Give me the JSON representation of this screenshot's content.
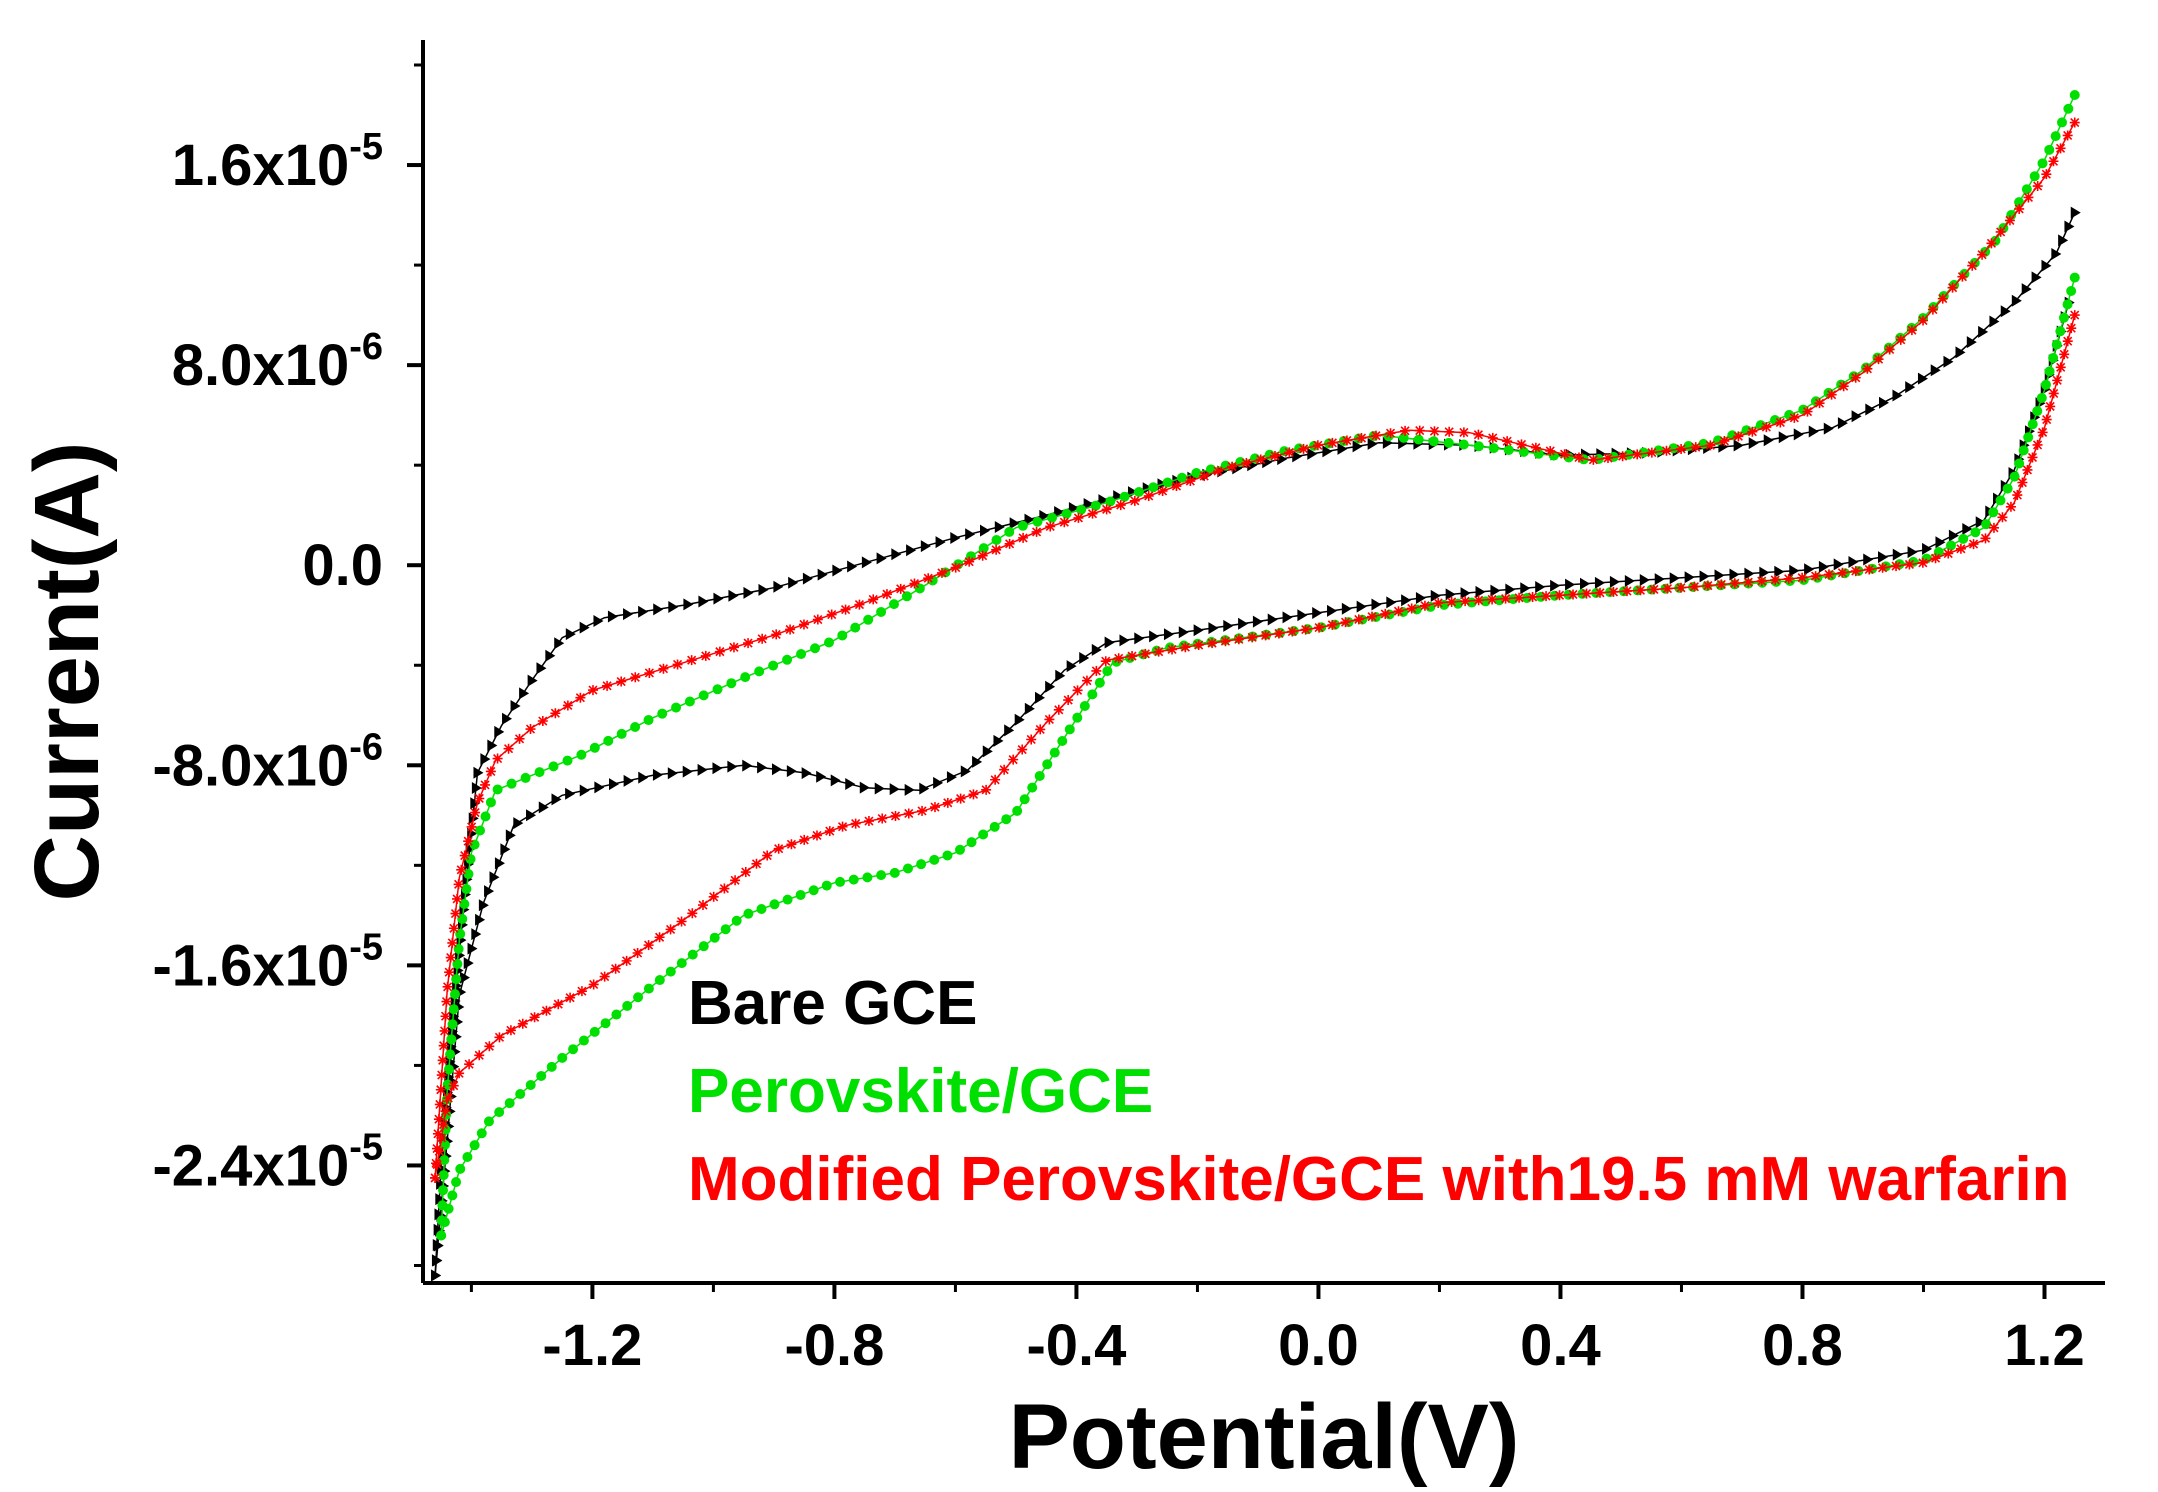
{
  "chart_data": {
    "type": "line",
    "title": "",
    "xlabel": "Potential(V)",
    "ylabel": "Current(A)",
    "xlim": [
      -1.48,
      1.3
    ],
    "ylim": [
      -2.87e-05,
      2.1e-05
    ],
    "grid": false,
    "legend_position": "bottom-center",
    "x_ticks": [
      {
        "value": -1.2,
        "label": "-1.2"
      },
      {
        "value": -0.8,
        "label": "-0.8"
      },
      {
        "value": -0.4,
        "label": "-0.4"
      },
      {
        "value": 0.0,
        "label": "0.0"
      },
      {
        "value": 0.4,
        "label": "0.4"
      },
      {
        "value": 0.8,
        "label": "0.8"
      },
      {
        "value": 1.2,
        "label": "1.2"
      }
    ],
    "y_ticks": [
      {
        "value": 1.6e-05,
        "mantissa": "1.6x10",
        "exponent": "-5"
      },
      {
        "value": 8e-06,
        "mantissa": "8.0x10",
        "exponent": "-6"
      },
      {
        "value": 0.0,
        "mantissa": "0.0",
        "exponent": ""
      },
      {
        "value": -8e-06,
        "mantissa": "-8.0x10",
        "exponent": "-6"
      },
      {
        "value": -1.6e-05,
        "mantissa": "-1.6x10",
        "exponent": "-5"
      },
      {
        "value": -2.4e-05,
        "mantissa": "-2.4x10",
        "exponent": "-5"
      }
    ],
    "series": [
      {
        "name": "Bare GCE",
        "color": "#000000",
        "marker": "triangle-right",
        "forward": [
          [
            -1.46,
            -2.84e-05
          ],
          [
            -1.44,
            -2.3e-05
          ],
          [
            -1.42,
            -1.72e-05
          ],
          [
            -1.38,
            -1.35e-05
          ],
          [
            -1.33,
            -1.04e-05
          ],
          [
            -1.25,
            -9.2e-06
          ],
          [
            -1.1,
            -8.4e-06
          ],
          [
            -0.95,
            -8e-06
          ],
          [
            -0.85,
            -8.3e-06
          ],
          [
            -0.75,
            -8.9e-06
          ],
          [
            -0.66,
            -9e-06
          ],
          [
            -0.58,
            -8.2e-06
          ],
          [
            -0.5,
            -6.3e-06
          ],
          [
            -0.42,
            -4.2e-06
          ],
          [
            -0.35,
            -3.1e-06
          ],
          [
            -0.2,
            -2.6e-06
          ],
          [
            0.0,
            -1.9e-06
          ],
          [
            0.2,
            -1.2e-06
          ],
          [
            0.4,
            -8e-07
          ],
          [
            0.6,
            -5e-07
          ],
          [
            0.8,
            -2e-07
          ],
          [
            1.0,
            6e-07
          ],
          [
            1.1,
            1.8e-06
          ],
          [
            1.15,
            3.8e-06
          ],
          [
            1.2,
            7e-06
          ],
          [
            1.24,
            1.05e-05
          ]
        ],
        "reverse": [
          [
            1.25,
            1.41e-05
          ],
          [
            1.22,
            1.25e-05
          ],
          [
            1.15,
            1.05e-05
          ],
          [
            1.05,
            8.3e-06
          ],
          [
            0.95,
            6.7e-06
          ],
          [
            0.85,
            5.5e-06
          ],
          [
            0.7,
            4.8e-06
          ],
          [
            0.55,
            4.5e-06
          ],
          [
            0.4,
            4.4e-06
          ],
          [
            0.25,
            4.8e-06
          ],
          [
            0.1,
            4.9e-06
          ],
          [
            -0.05,
            4.3e-06
          ],
          [
            -0.25,
            3.3e-06
          ],
          [
            -0.45,
            2e-06
          ],
          [
            -0.6,
            1.1e-06
          ],
          [
            -0.75,
            1e-07
          ],
          [
            -0.9,
            -9e-07
          ],
          [
            -1.05,
            -1.6e-06
          ],
          [
            -1.18,
            -2.1e-06
          ],
          [
            -1.25,
            -2.9e-06
          ],
          [
            -1.3,
            -4.6e-06
          ],
          [
            -1.35,
            -6.4e-06
          ],
          [
            -1.39,
            -8.3e-06
          ],
          [
            -1.41,
            -1.3e-05
          ],
          [
            -1.43,
            -1.8e-05
          ],
          [
            -1.45,
            -2.4e-05
          ],
          [
            -1.46,
            -2.84e-05
          ]
        ]
      },
      {
        "name": "Perovskite/GCE",
        "color": "#00e000",
        "marker": "circle",
        "forward": [
          [
            -1.45,
            -2.68e-05
          ],
          [
            -1.42,
            -2.42e-05
          ],
          [
            -1.37,
            -2.22e-05
          ],
          [
            -1.25,
            -1.97e-05
          ],
          [
            -1.1,
            -1.68e-05
          ],
          [
            -0.95,
            -1.4e-05
          ],
          [
            -0.8,
            -1.27e-05
          ],
          [
            -0.7,
            -1.23e-05
          ],
          [
            -0.6,
            -1.15e-05
          ],
          [
            -0.5,
            -9.9e-06
          ],
          [
            -0.42,
            -6.9e-06
          ],
          [
            -0.34,
            -3.9e-06
          ],
          [
            -0.25,
            -3.3e-06
          ],
          [
            0.0,
            -2.5e-06
          ],
          [
            0.2,
            -1.6e-06
          ],
          [
            0.4,
            -1.2e-06
          ],
          [
            0.6,
            -9e-07
          ],
          [
            0.8,
            -6e-07
          ],
          [
            1.0,
            2e-07
          ],
          [
            1.1,
            1.5e-06
          ],
          [
            1.15,
            3.5e-06
          ],
          [
            1.2,
            7e-06
          ],
          [
            1.25,
            1.15e-05
          ]
        ],
        "reverse": [
          [
            1.25,
            1.88e-05
          ],
          [
            1.2,
            1.62e-05
          ],
          [
            1.12,
            1.3e-05
          ],
          [
            1.0,
            9.9e-06
          ],
          [
            0.9,
            7.8e-06
          ],
          [
            0.8,
            6.2e-06
          ],
          [
            0.65,
            4.9e-06
          ],
          [
            0.45,
            4.2e-06
          ],
          [
            0.25,
            4.8e-06
          ],
          [
            0.1,
            5.2e-06
          ],
          [
            -0.05,
            4.6e-06
          ],
          [
            -0.2,
            3.7e-06
          ],
          [
            -0.35,
            2.5e-06
          ],
          [
            -0.5,
            1.5e-06
          ],
          [
            -0.65,
            -8e-07
          ],
          [
            -0.8,
            -3e-06
          ],
          [
            -0.95,
            -4.5e-06
          ],
          [
            -1.1,
            -6.1e-06
          ],
          [
            -1.22,
            -7.6e-06
          ],
          [
            -1.3,
            -8.4e-06
          ],
          [
            -1.36,
            -9e-06
          ],
          [
            -1.4,
            -1.15e-05
          ],
          [
            -1.42,
            -1.5e-05
          ],
          [
            -1.44,
            -2.1e-05
          ],
          [
            -1.45,
            -2.68e-05
          ]
        ]
      },
      {
        "name": "Modified Perovskite/GCE with19.5 mM warfarin",
        "color": "#ff0000",
        "marker": "star",
        "forward": [
          [
            -1.46,
            -2.45e-05
          ],
          [
            -1.44,
            -2.14e-05
          ],
          [
            -1.42,
            -2.03e-05
          ],
          [
            -1.35,
            -1.88e-05
          ],
          [
            -1.2,
            -1.68e-05
          ],
          [
            -1.05,
            -1.42e-05
          ],
          [
            -0.9,
            -1.14e-05
          ],
          [
            -0.78,
            -1.04e-05
          ],
          [
            -0.65,
            -9.8e-06
          ],
          [
            -0.55,
            -9e-06
          ],
          [
            -0.45,
            -6.3e-06
          ],
          [
            -0.35,
            -3.8e-06
          ],
          [
            -0.2,
            -3.2e-06
          ],
          [
            0.0,
            -2.5e-06
          ],
          [
            0.2,
            -1.5e-06
          ],
          [
            0.4,
            -1.2e-06
          ],
          [
            0.6,
            -9e-07
          ],
          [
            0.8,
            -5e-07
          ],
          [
            1.0,
            1e-07
          ],
          [
            1.1,
            1e-06
          ],
          [
            1.15,
            2.5e-06
          ],
          [
            1.2,
            5.5e-06
          ],
          [
            1.25,
            1e-05
          ]
        ],
        "reverse": [
          [
            1.25,
            1.77e-05
          ],
          [
            1.2,
            1.55e-05
          ],
          [
            1.1,
            1.25e-05
          ],
          [
            1.0,
            9.8e-06
          ],
          [
            0.9,
            7.7e-06
          ],
          [
            0.8,
            6e-06
          ],
          [
            0.65,
            4.8e-06
          ],
          [
            0.45,
            4.2e-06
          ],
          [
            0.25,
            5.3e-06
          ],
          [
            0.15,
            5.4e-06
          ],
          [
            0.0,
            4.8e-06
          ],
          [
            -0.15,
            3.9e-06
          ],
          [
            -0.3,
            2.6e-06
          ],
          [
            -0.45,
            1.5e-06
          ],
          [
            -0.6,
            -1e-07
          ],
          [
            -0.75,
            -1.5e-06
          ],
          [
            -0.9,
            -2.8e-06
          ],
          [
            -1.05,
            -3.9e-06
          ],
          [
            -1.2,
            -5e-06
          ],
          [
            -1.3,
            -6.5e-06
          ],
          [
            -1.36,
            -7.8e-06
          ],
          [
            -1.39,
            -9.5e-06
          ],
          [
            -1.42,
            -1.25e-05
          ],
          [
            -1.44,
            -1.7e-05
          ],
          [
            -1.46,
            -2.45e-05
          ]
        ]
      }
    ]
  }
}
